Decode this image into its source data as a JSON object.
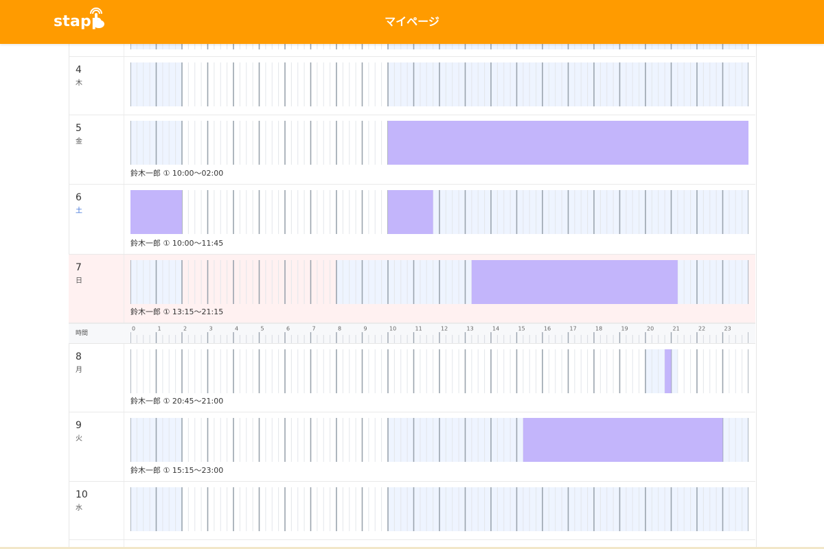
{
  "header": {
    "logo": "stapp",
    "title": "マイページ"
  },
  "axis": {
    "label": "時間",
    "hours": [
      "0",
      "1",
      "2",
      "3",
      "4",
      "5",
      "6",
      "7",
      "8",
      "9",
      "10",
      "11",
      "12",
      "13",
      "14",
      "15",
      "16",
      "17",
      "18",
      "19",
      "20",
      "21",
      "22",
      "23"
    ]
  },
  "colors": {
    "header": "#ff9b00",
    "shift": "#c3b5fb",
    "available": "#eef4ff",
    "sunday_row": "#fff1f1"
  },
  "days": [
    {
      "num": "4",
      "weekday": "木",
      "shift": null,
      "available": [
        [
          0,
          2
        ],
        [
          10,
          24
        ]
      ]
    },
    {
      "num": "5",
      "weekday": "金",
      "shift": "鈴木一郎 ① 10:00〜02:00",
      "available": [
        [
          0,
          2
        ]
      ],
      "shift_range": [
        10,
        24
      ]
    },
    {
      "num": "6",
      "weekday": "土",
      "shift": "鈴木一郎 ① 10:00〜11:45",
      "available": [
        [
          0,
          2
        ],
        [
          11.75,
          24
        ]
      ],
      "shift_range": [
        0,
        2
      ],
      "shift_range_2": [
        10,
        11.75
      ]
    },
    {
      "num": "7",
      "weekday": "日",
      "shift": "鈴木一郎 ① 13:15〜21:15",
      "available": [
        [
          0,
          2
        ],
        [
          8,
          13.25
        ],
        [
          21.25,
          24
        ]
      ],
      "shift_range": [
        13.25,
        21.25
      ]
    },
    {
      "num": "8",
      "weekday": "月",
      "shift": "鈴木一郎 ① 20:45〜21:00",
      "available": [
        [
          20,
          21.25
        ]
      ],
      "shift_range": [
        20.75,
        21
      ]
    },
    {
      "num": "9",
      "weekday": "火",
      "shift": "鈴木一郎 ① 15:15〜23:00",
      "available": [
        [
          0,
          2
        ],
        [
          10,
          15.25
        ],
        [
          23,
          24
        ]
      ],
      "shift_range": [
        15.25,
        23
      ]
    },
    {
      "num": "10",
      "weekday": "水",
      "shift": null,
      "available": [
        [
          0,
          2
        ],
        [
          10,
          24
        ]
      ]
    }
  ]
}
